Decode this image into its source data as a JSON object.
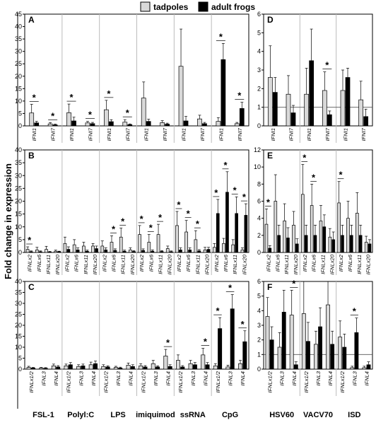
{
  "figure": {
    "ylabel": "Fold change in expression",
    "legend": [
      {
        "label": "tadpoles",
        "color": "#d9d9d9"
      },
      {
        "label": "adult frogs",
        "color": "#000000"
      }
    ],
    "bottom_groups_left": [
      "FSL-1",
      "Polyl:C",
      "LPS",
      "imiquimod",
      "ssRNA",
      "CpG"
    ],
    "bottom_groups_right": [
      "HSV60",
      "VACV70",
      "ISD"
    ]
  },
  "chart_data": [
    {
      "panel": "A",
      "type": "bar",
      "ylim": [
        0,
        45
      ],
      "yticks": [
        0,
        5,
        10,
        15,
        20,
        25,
        30,
        35,
        40,
        45
      ],
      "categories": [
        "IFNI1",
        "IFNI7",
        "IFNI1",
        "IFNI7",
        "IFNI1",
        "IFNI7",
        "IFNI1",
        "IFNI7",
        "IFNI1",
        "IFNI7",
        "IFNI1",
        "IFNI7"
      ],
      "series": [
        {
          "name": "tadpoles",
          "values": [
            5.2,
            0.8,
            5.3,
            1.2,
            6.5,
            1.5,
            11.2,
            1.3,
            24,
            2.8,
            1.8,
            0.9
          ],
          "errors": [
            3.5,
            0.5,
            3.5,
            0.6,
            3.8,
            1.0,
            6.5,
            0.8,
            15,
            1.5,
            1.5,
            0.5
          ]
        },
        {
          "name": "adult frogs",
          "values": [
            1.2,
            0.4,
            2.0,
            0.9,
            1.7,
            0.5,
            1.8,
            0.7,
            2.0,
            0.9,
            26.7,
            7.0
          ],
          "errors": [
            0.6,
            0.3,
            1.5,
            0.5,
            0.8,
            0.3,
            0.9,
            0.4,
            1.8,
            0.5,
            6.5,
            2.5
          ]
        }
      ],
      "significant": [
        0,
        1,
        2,
        3,
        4,
        5,
        10,
        11
      ]
    },
    {
      "panel": "B",
      "type": "bar",
      "ylim": [
        0,
        40
      ],
      "yticks": [
        0,
        5,
        10,
        15,
        20,
        25,
        30,
        35,
        40
      ],
      "categories": [
        "IFNLx2",
        "IFNLx6",
        "IFNLx11",
        "IFNLx20",
        "IFNLx2",
        "IFNLx6",
        "IFNLx11",
        "IFNLx20",
        "IFNLx2",
        "IFNLx6",
        "IFNLx11",
        "IFNLx20",
        "IFNLx2",
        "IFNLx6",
        "IFNLx11",
        "IFNLx20",
        "IFNLx2",
        "IFNLx6",
        "IFNLx11",
        "IFNLx20",
        "IFNLx2",
        "IFNLx6",
        "IFNLx11",
        "IFNLx20"
      ],
      "series": [
        {
          "name": "tadpoles",
          "values": [
            1.2,
            1.0,
            1.2,
            0.5,
            3.5,
            3.0,
            2.5,
            2.5,
            2.5,
            4.0,
            6.0,
            1.0,
            7.0,
            4.0,
            7.0,
            1.5,
            10.5,
            8.0,
            5.0,
            1.0,
            2.0,
            3.5,
            3.0,
            1.0
          ],
          "errors": [
            1.0,
            1.0,
            1.2,
            0.4,
            2.5,
            2.0,
            1.5,
            1.0,
            2.0,
            2.5,
            3.5,
            0.8,
            3.5,
            3.0,
            4.0,
            1.0,
            5.5,
            4.5,
            3.5,
            1.0,
            1.5,
            2.0,
            2.0,
            0.8
          ]
        },
        {
          "name": "adult frogs",
          "values": [
            0.3,
            0.3,
            0.2,
            0.3,
            1.2,
            1.0,
            0.5,
            1.5,
            1.0,
            0.8,
            0.5,
            0.4,
            0.8,
            0.5,
            0.4,
            0.3,
            1.0,
            1.0,
            0.6,
            1.2,
            15.2,
            23.5,
            15.2,
            14.5
          ],
          "errors": [
            0.3,
            0.3,
            0.2,
            0.2,
            1.0,
            0.8,
            0.4,
            1.0,
            0.8,
            0.6,
            0.4,
            0.3,
            0.6,
            0.5,
            0.3,
            0.3,
            0.8,
            0.8,
            0.5,
            0.8,
            5.5,
            8.0,
            6.5,
            4.5
          ]
        }
      ],
      "significant": [
        0,
        9,
        10,
        12,
        13,
        14,
        16,
        17,
        18,
        20,
        21,
        22,
        23
      ]
    },
    {
      "panel": "C",
      "type": "bar",
      "ylim": [
        0,
        40
      ],
      "yticks": [
        0,
        5,
        10,
        15,
        20,
        25,
        30,
        35,
        40
      ],
      "categories": [
        "IFNLx1/2",
        "IFNL3",
        "IFNL4",
        "IFNLx1/2",
        "IFNL3",
        "IFNL4",
        "IFNLx1/2",
        "IFNL3",
        "IFNL4",
        "IFNLx1/2",
        "IFNL3",
        "IFNL4",
        "IFNLx1/2",
        "IFNL3",
        "IFNL4",
        "IFNLx1/2",
        "IFNL3",
        "IFNL4"
      ],
      "series": [
        {
          "name": "tadpoles",
          "values": [
            0.8,
            0.5,
            1.5,
            1.5,
            1.2,
            2.0,
            1.2,
            0.8,
            1.8,
            1.5,
            2.5,
            6.0,
            4.0,
            2.5,
            6.5,
            1.5,
            1.0,
            2.5
          ],
          "errors": [
            0.5,
            0.3,
            0.8,
            0.8,
            0.8,
            1.2,
            0.8,
            0.5,
            1.0,
            1.0,
            1.5,
            3.0,
            2.5,
            1.5,
            3.0,
            1.0,
            0.8,
            1.5
          ]
        },
        {
          "name": "adult frogs",
          "values": [
            0.5,
            0.4,
            1.0,
            2.0,
            1.5,
            2.5,
            1.0,
            0.5,
            1.2,
            1.0,
            1.0,
            1.2,
            1.0,
            2.0,
            2.0,
            18.5,
            27.5,
            12.5
          ],
          "errors": [
            0.3,
            0.3,
            0.6,
            1.0,
            0.8,
            1.2,
            0.5,
            0.4,
            0.8,
            0.6,
            0.5,
            0.8,
            0.6,
            1.0,
            1.0,
            5.0,
            6.5,
            5.0
          ]
        }
      ],
      "significant": [
        11,
        14,
        15,
        16,
        17
      ]
    },
    {
      "panel": "D",
      "type": "bar",
      "ylim": [
        0,
        6
      ],
      "yticks": [
        0,
        1,
        2,
        3,
        4,
        5,
        6
      ],
      "categories": [
        "IFNI1",
        "IFNI7",
        "IFNI1",
        "IFNI7",
        "IFNI1",
        "IFNI7"
      ],
      "series": [
        {
          "name": "tadpoles",
          "values": [
            2.6,
            1.7,
            1.7,
            1.9,
            1.9,
            1.4
          ],
          "errors": [
            1.7,
            1.0,
            1.4,
            1.0,
            1.1,
            1.0
          ]
        },
        {
          "name": "adult frogs",
          "values": [
            1.8,
            0.7,
            3.5,
            0.6,
            2.6,
            0.5
          ],
          "errors": [
            0.8,
            0.4,
            1.7,
            0.2,
            0.5,
            0.4
          ]
        }
      ],
      "significant": [
        3
      ]
    },
    {
      "panel": "E",
      "type": "bar",
      "ylim": [
        0,
        12
      ],
      "yticks": [
        0,
        2,
        4,
        6,
        8,
        10,
        12
      ],
      "categories": [
        "IFNLx2",
        "IFNLx6",
        "IFNLx11",
        "IFNLx20",
        "IFNLx2",
        "IFNLx6",
        "IFNLx11",
        "IFNLx20",
        "IFNLx2",
        "IFNLx6",
        "IFNLx11",
        "IFNLx20"
      ],
      "series": [
        {
          "name": "tadpoles",
          "values": [
            3.3,
            6.0,
            3.7,
            3.2,
            6.8,
            5.5,
            3.7,
            1.8,
            5.8,
            4.0,
            4.6,
            1.2
          ],
          "errors": [
            1.8,
            3.1,
            2.0,
            1.6,
            3.5,
            2.5,
            1.8,
            1.0,
            2.5,
            2.0,
            2.4,
            0.7
          ]
        },
        {
          "name": "adult frogs",
          "values": [
            0.5,
            2.0,
            1.7,
            1.0,
            2.0,
            2.0,
            3.0,
            1.5,
            2.0,
            2.0,
            2.0,
            1.0
          ],
          "errors": [
            0.3,
            1.2,
            1.2,
            0.6,
            1.2,
            1.2,
            1.4,
            0.9,
            1.2,
            1.2,
            1.2,
            0.5
          ]
        }
      ],
      "significant": [
        0,
        4,
        5,
        8
      ]
    },
    {
      "panel": "F",
      "type": "bar",
      "ylim": [
        0,
        6
      ],
      "yticks": [
        0,
        1,
        2,
        3,
        4,
        5,
        6
      ],
      "categories": [
        "IFNLx1/2",
        "IFNL3",
        "IFNL4",
        "IFNLx1/2",
        "IFNL3",
        "IFNL4",
        "IFNLx1/2",
        "IFNL3",
        "IFNL4"
      ],
      "series": [
        {
          "name": "tadpoles",
          "values": [
            3.6,
            1.5,
            3.7,
            3.8,
            1.7,
            4.4,
            2.2,
            0.1,
            0.1
          ],
          "errors": [
            1.3,
            1.0,
            1.7,
            2.8,
            0.9,
            2.5,
            1.1,
            0.1,
            0.1
          ]
        },
        {
          "name": "adult frogs",
          "values": [
            2.0,
            3.9,
            0.3,
            1.9,
            2.9,
            1.7,
            1.5,
            2.5,
            0.3
          ],
          "errors": [
            0.9,
            1.5,
            0.2,
            1.3,
            1.3,
            0.9,
            0.9,
            1.0,
            0.2
          ]
        }
      ],
      "significant": [
        2,
        7
      ]
    }
  ]
}
